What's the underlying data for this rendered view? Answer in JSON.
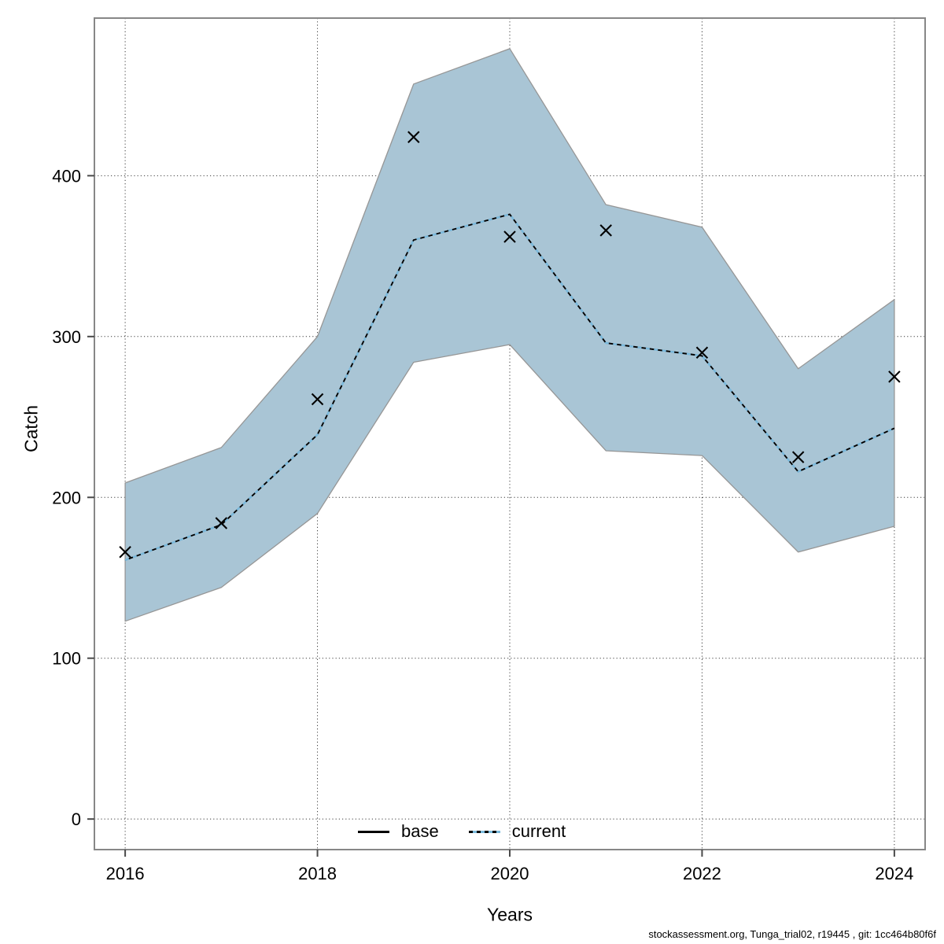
{
  "footer": {
    "text": "stockassessment.org, Tunga_trial02, r19445 , git: 1cc464b80f6f"
  },
  "chart_data": {
    "type": "line",
    "title": "",
    "xlabel": "Years",
    "ylabel": "Catch",
    "x": [
      2016,
      2017,
      2018,
      2019,
      2020,
      2021,
      2022,
      2023,
      2024
    ],
    "x_ticks": [
      2016,
      2018,
      2020,
      2022,
      2024
    ],
    "x_tick_labels": [
      "2016",
      "2018",
      "2020",
      "2022",
      "2024"
    ],
    "y_ticks": [
      0,
      100,
      200,
      300,
      400
    ],
    "y_tick_labels": [
      "0",
      "100",
      "200",
      "300",
      "400"
    ],
    "xlim": [
      2015.68,
      2024.32
    ],
    "ylim": [
      -19,
      498
    ],
    "grid": true,
    "grid_style": "dotted",
    "legend_position": "bottom-center-inside",
    "observed_markers": {
      "shape": "x",
      "color": "#000000",
      "values": [
        166,
        184,
        261,
        424,
        362,
        366,
        290,
        225,
        275
      ]
    },
    "series": [
      {
        "name": "base",
        "line": "solid",
        "color": "#000000",
        "values": [
          161,
          183,
          239,
          360,
          376,
          296,
          288,
          216,
          243
        ]
      },
      {
        "name": "current",
        "line": "dotted",
        "color": "#7ab9dc",
        "values": [
          161,
          183,
          239,
          360,
          376,
          296,
          288,
          216,
          243
        ],
        "band": {
          "lower": [
            123,
            144,
            190,
            284,
            295,
            229,
            226,
            166,
            182
          ],
          "upper": [
            209,
            231,
            300,
            457,
            479,
            382,
            368,
            280,
            323
          ],
          "fill": "#a9c5d5",
          "edge": "#969696"
        }
      }
    ],
    "legend": [
      {
        "label": "base",
        "sample": "solid"
      },
      {
        "label": "current",
        "sample": "dotted"
      }
    ],
    "colors": {
      "band_fill": "#a9c5d5",
      "band_edge": "#969696",
      "current_blue": "#7ab9dc",
      "axis_border": "#878787",
      "tick": "#4a4a4a",
      "grid": "#3a3a3a"
    }
  }
}
